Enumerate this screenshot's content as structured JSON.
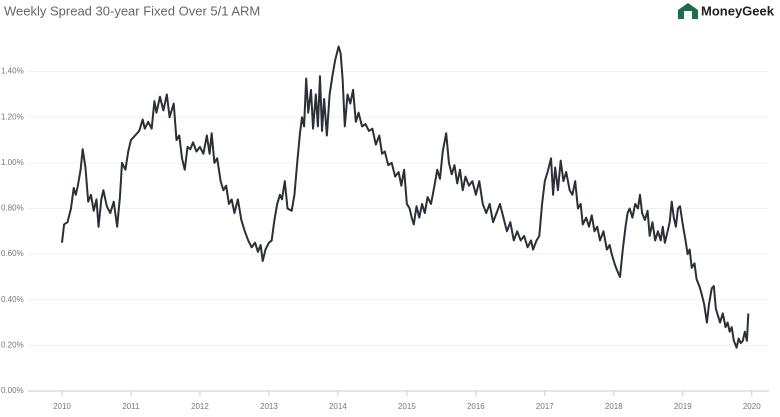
{
  "chart_data": {
    "type": "line",
    "title": "Weekly Spread 30-year Fixed Over 5/1 ARM",
    "brand": "MoneyGeek",
    "color": "#2b3038",
    "grid": true,
    "xlim": [
      2009.5,
      2020.25
    ],
    "xticks": [
      2010,
      2011,
      2012,
      2013,
      2014,
      2015,
      2016,
      2017,
      2018,
      2019,
      2020
    ],
    "ylim": [
      0,
      1.6
    ],
    "yticks": [
      {
        "value": 0,
        "label": "0.00%"
      },
      {
        "value": 0.2,
        "label": "0.20%"
      },
      {
        "value": 0.4,
        "label": "0.40%"
      },
      {
        "value": 0.6,
        "label": "0.60%"
      },
      {
        "value": 0.8,
        "label": "0.80%"
      },
      {
        "value": 1.0,
        "label": "1.00%"
      },
      {
        "value": 1.2,
        "label": "1.20%"
      },
      {
        "value": 1.4,
        "label": "1.40%"
      }
    ],
    "x": [
      2010,
      2010.03,
      2010.08,
      2010.13,
      2010.17,
      2010.2,
      2010.23,
      2010.27,
      2010.3,
      2010.34,
      2010.38,
      2010.42,
      2010.46,
      2010.5,
      2010.53,
      2010.57,
      2010.6,
      2010.65,
      2010.7,
      2010.75,
      2010.8,
      2010.84,
      2010.87,
      2010.92,
      2010.96,
      2011,
      2011.06,
      2011.12,
      2011.17,
      2011.2,
      2011.25,
      2011.3,
      2011.34,
      2011.37,
      2011.42,
      2011.47,
      2011.52,
      2011.56,
      2011.62,
      2011.66,
      2011.7,
      2011.74,
      2011.78,
      2011.82,
      2011.86,
      2011.9,
      2011.95,
      2012,
      2012.05,
      2012.1,
      2012.14,
      2012.17,
      2012.21,
      2012.25,
      2012.3,
      2012.34,
      2012.38,
      2012.42,
      2012.46,
      2012.5,
      2012.55,
      2012.6,
      2012.65,
      2012.7,
      2012.75,
      2012.8,
      2012.84,
      2012.88,
      2012.91,
      2012.95,
      2013,
      2013.04,
      2013.08,
      2013.12,
      2013.16,
      2013.19,
      2013.23,
      2013.27,
      2013.33,
      2013.37,
      2013.41,
      2013.45,
      2013.48,
      2013.51,
      2013.54,
      2013.57,
      2013.61,
      2013.64,
      2013.68,
      2013.71,
      2013.74,
      2013.77,
      2013.8,
      2013.84,
      2013.88,
      2013.92,
      2013.96,
      2014.01,
      2014.04,
      2014.07,
      2014.1,
      2014.14,
      2014.18,
      2014.22,
      2014.26,
      2014.3,
      2014.35,
      2014.4,
      2014.45,
      2014.5,
      2014.55,
      2014.6,
      2014.64,
      2014.68,
      2014.73,
      2014.78,
      2014.83,
      2014.88,
      2014.92,
      2014.96,
      2015,
      2015.04,
      2015.07,
      2015.1,
      2015.14,
      2015.18,
      2015.22,
      2015.26,
      2015.3,
      2015.35,
      2015.4,
      2015.44,
      2015.48,
      2015.52,
      2015.57,
      2015.61,
      2015.65,
      2015.69,
      2015.73,
      2015.77,
      2015.81,
      2015.85,
      2015.9,
      2015.95,
      2016,
      2016.05,
      2016.1,
      2016.15,
      2016.2,
      2016.25,
      2016.3,
      2016.35,
      2016.4,
      2016.45,
      2016.5,
      2016.55,
      2016.6,
      2016.65,
      2016.7,
      2016.75,
      2016.8,
      2016.83,
      2016.88,
      2016.92,
      2016.96,
      2017,
      2017.04,
      2017.09,
      2017.12,
      2017.15,
      2017.19,
      2017.23,
      2017.27,
      2017.31,
      2017.36,
      2017.4,
      2017.44,
      2017.48,
      2017.52,
      2017.55,
      2017.6,
      2017.64,
      2017.68,
      2017.72,
      2017.76,
      2017.8,
      2017.85,
      2017.9,
      2017.94,
      2017.97,
      2018.02,
      2018.06,
      2018.09,
      2018.13,
      2018.17,
      2018.2,
      2018.23,
      2018.27,
      2018.31,
      2018.35,
      2018.38,
      2018.41,
      2018.45,
      2018.49,
      2018.52,
      2018.56,
      2018.6,
      2018.64,
      2018.68,
      2018.71,
      2018.74,
      2018.78,
      2018.81,
      2018.84,
      2018.87,
      2018.9,
      2018.93,
      2018.96,
      2019,
      2019.04,
      2019.07,
      2019.1,
      2019.13,
      2019.17,
      2019.2,
      2019.24,
      2019.27,
      2019.31,
      2019.35,
      2019.38,
      2019.42,
      2019.45,
      2019.48,
      2019.51,
      2019.54,
      2019.58,
      2019.62,
      2019.65,
      2019.68,
      2019.71,
      2019.74,
      2019.78,
      2019.81,
      2019.84,
      2019.87,
      2019.9,
      2019.93,
      2019.95
    ],
    "values": [
      0.65,
      0.73,
      0.74,
      0.8,
      0.89,
      0.86,
      0.9,
      0.97,
      1.06,
      0.98,
      0.83,
      0.86,
      0.79,
      0.84,
      0.72,
      0.84,
      0.88,
      0.81,
      0.78,
      0.83,
      0.72,
      0.85,
      1.0,
      0.97,
      1.05,
      1.1,
      1.12,
      1.14,
      1.19,
      1.15,
      1.18,
      1.15,
      1.27,
      1.22,
      1.29,
      1.23,
      1.3,
      1.2,
      1.26,
      1.1,
      1.12,
      1.02,
      0.97,
      1.07,
      1.06,
      1.09,
      1.05,
      1.07,
      1.04,
      1.12,
      1.04,
      1.13,
      1.0,
      1.02,
      0.92,
      0.88,
      0.9,
      0.82,
      0.84,
      0.78,
      0.84,
      0.75,
      0.7,
      0.66,
      0.63,
      0.65,
      0.61,
      0.64,
      0.57,
      0.62,
      0.65,
      0.66,
      0.75,
      0.82,
      0.86,
      0.84,
      0.92,
      0.8,
      0.79,
      0.86,
      1.0,
      1.13,
      1.2,
      1.16,
      1.37,
      1.22,
      1.32,
      1.15,
      1.3,
      1.16,
      1.38,
      1.14,
      1.28,
      1.12,
      1.3,
      1.38,
      1.45,
      1.51,
      1.48,
      1.36,
      1.16,
      1.3,
      1.26,
      1.32,
      1.18,
      1.22,
      1.16,
      1.17,
      1.14,
      1.15,
      1.08,
      1.12,
      1.04,
      1.05,
      0.99,
      1.0,
      0.94,
      0.96,
      0.9,
      0.97,
      0.82,
      0.8,
      0.76,
      0.73,
      0.81,
      0.76,
      0.82,
      0.78,
      0.85,
      0.82,
      0.9,
      0.97,
      0.93,
      1.05,
      1.13,
      1.0,
      0.95,
      0.99,
      0.91,
      0.97,
      0.88,
      0.94,
      0.9,
      0.92,
      0.86,
      0.92,
      0.82,
      0.78,
      0.82,
      0.74,
      0.78,
      0.82,
      0.76,
      0.7,
      0.74,
      0.66,
      0.7,
      0.66,
      0.68,
      0.63,
      0.66,
      0.62,
      0.66,
      0.68,
      0.82,
      0.92,
      0.96,
      1.02,
      0.86,
      0.98,
      0.88,
      1.01,
      0.92,
      0.96,
      0.88,
      0.86,
      0.92,
      0.8,
      0.82,
      0.73,
      0.76,
      0.72,
      0.77,
      0.7,
      0.72,
      0.66,
      0.7,
      0.62,
      0.64,
      0.6,
      0.55,
      0.52,
      0.5,
      0.62,
      0.72,
      0.78,
      0.8,
      0.76,
      0.82,
      0.8,
      0.86,
      0.78,
      0.75,
      0.79,
      0.68,
      0.74,
      0.66,
      0.7,
      0.66,
      0.72,
      0.65,
      0.7,
      0.74,
      0.83,
      0.76,
      0.72,
      0.8,
      0.81,
      0.73,
      0.66,
      0.6,
      0.62,
      0.54,
      0.56,
      0.49,
      0.46,
      0.43,
      0.38,
      0.3,
      0.38,
      0.45,
      0.46,
      0.36,
      0.33,
      0.3,
      0.34,
      0.28,
      0.3,
      0.26,
      0.28,
      0.22,
      0.19,
      0.23,
      0.21,
      0.22,
      0.26,
      0.22,
      0.34
    ]
  }
}
